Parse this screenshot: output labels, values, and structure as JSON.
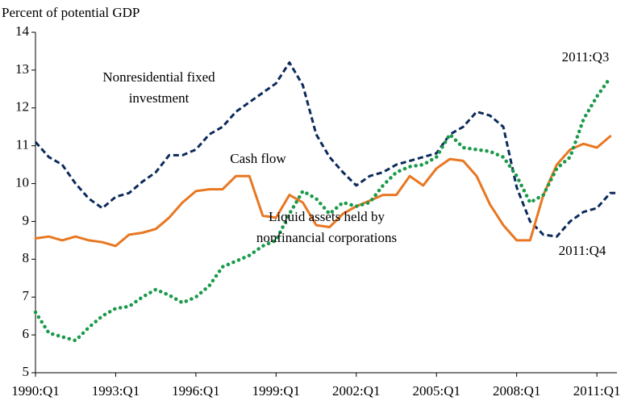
{
  "chart_data": {
    "type": "line",
    "y_axis_label": "Percent of potential GDP",
    "x": [
      1990,
      1990.5,
      1991,
      1991.5,
      1992,
      1992.5,
      1993,
      1993.5,
      1994,
      1994.5,
      1995,
      1995.5,
      1996,
      1996.5,
      1997,
      1997.5,
      1998,
      1998.5,
      1999,
      1999.5,
      2000,
      2000.5,
      2001,
      2001.5,
      2002,
      2002.5,
      2003,
      2003.5,
      2004,
      2004.5,
      2005,
      2005.5,
      2006,
      2006.5,
      2007,
      2007.5,
      2008,
      2008.5,
      2009,
      2009.5,
      2010,
      2010.5,
      2011,
      2011.5,
      2011.75
    ],
    "series": [
      {
        "color": "#0b2a5b",
        "dash": "dashed",
        "values": [
          11.1,
          10.7,
          10.5,
          10.0,
          9.6,
          9.35,
          9.65,
          9.75,
          10.05,
          10.3,
          10.75,
          10.75,
          10.9,
          11.3,
          11.5,
          11.9,
          12.15,
          12.4,
          12.65,
          13.2,
          12.6,
          11.3,
          10.7,
          10.3,
          9.95,
          10.2,
          10.3,
          10.5,
          10.6,
          10.7,
          10.8,
          11.3,
          11.5,
          11.9,
          11.8,
          11.5,
          9.9,
          9.0,
          8.65,
          8.6,
          9.0,
          9.25,
          9.35,
          9.75,
          9.75
        ]
      },
      {
        "color": "#e87722",
        "dash": "solid",
        "values": [
          8.55,
          8.6,
          8.5,
          8.6,
          8.5,
          8.45,
          8.35,
          8.65,
          8.7,
          8.8,
          9.1,
          9.5,
          9.8,
          9.85,
          9.85,
          10.2,
          10.2,
          9.15,
          9.1,
          9.7,
          9.5,
          8.9,
          8.85,
          9.2,
          9.4,
          9.55,
          9.7,
          9.7,
          10.2,
          9.95,
          10.4,
          10.65,
          10.6,
          10.2,
          9.45,
          8.9,
          8.5,
          8.5,
          9.7,
          10.5,
          10.9,
          11.05,
          10.95,
          11.25,
          null
        ]
      },
      {
        "color": "#1a9a4a",
        "dash": "dotted",
        "values": [
          6.6,
          6.05,
          5.95,
          5.85,
          6.2,
          6.5,
          6.7,
          6.75,
          7.0,
          7.2,
          7.05,
          6.85,
          7.0,
          7.3,
          7.8,
          7.95,
          8.1,
          8.35,
          8.5,
          9.2,
          9.8,
          9.6,
          9.2,
          9.5,
          9.4,
          9.5,
          9.95,
          10.3,
          10.45,
          10.5,
          10.7,
          11.3,
          10.95,
          10.9,
          10.85,
          10.7,
          10.2,
          9.5,
          9.7,
          10.4,
          10.7,
          11.7,
          12.3,
          12.8,
          null
        ]
      }
    ],
    "annotations": [
      {
        "lines": [
          "Nonresidential fixed",
          "investment"
        ]
      },
      {
        "lines": [
          "Cash flow"
        ]
      },
      {
        "lines": [
          "Liquid assets held by",
          "nonfinancial corporations"
        ]
      },
      {
        "lines": [
          "2011:Q3"
        ]
      },
      {
        "lines": [
          "2011:Q4"
        ]
      }
    ],
    "xlim": [
      1990,
      2011.75
    ],
    "xticks": [
      {
        "value": 1990,
        "label": "1990:Q1"
      },
      {
        "value": 1993,
        "label": "1993:Q1"
      },
      {
        "value": 1996,
        "label": "1996:Q1"
      },
      {
        "value": 1999,
        "label": "1999:Q1"
      },
      {
        "value": 2002,
        "label": "2002:Q1"
      },
      {
        "value": 2005,
        "label": "2005:Q1"
      },
      {
        "value": 2008,
        "label": "2008:Q1"
      },
      {
        "value": 2011,
        "label": "2011:Q1"
      }
    ],
    "ylim": [
      5,
      14
    ],
    "yticks": [
      5,
      6,
      7,
      8,
      9,
      10,
      11,
      12,
      13,
      14
    ],
    "grid": false
  }
}
